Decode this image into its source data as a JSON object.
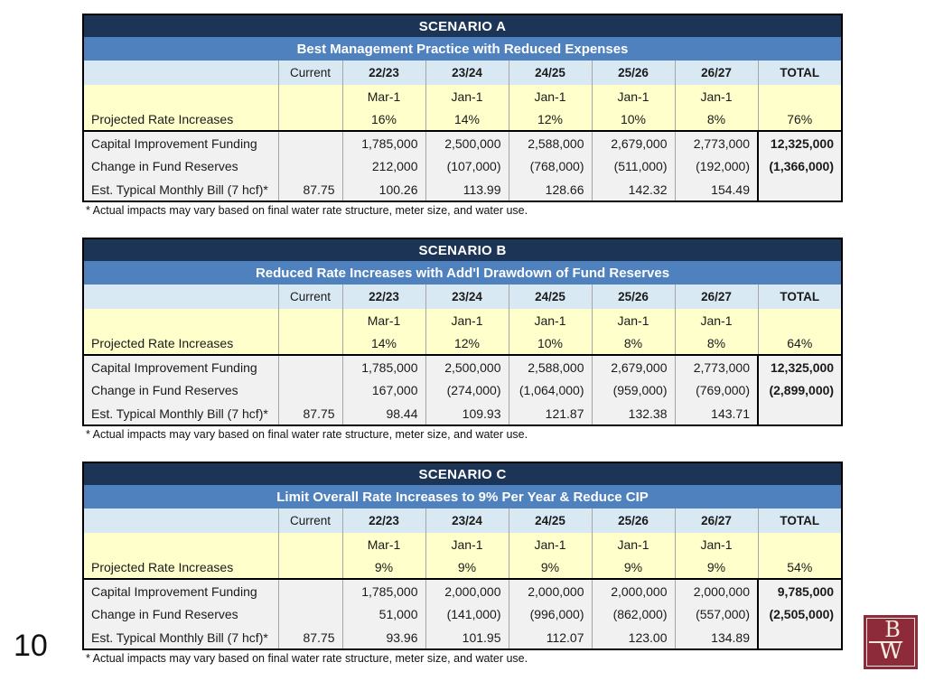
{
  "page": {
    "number": "10"
  },
  "colors": {
    "title_bar": "#1C3557",
    "subtitle_bar": "#4E81BD",
    "column_header_bg": "#D9E9F3",
    "highlight_row_bg": "#FFFFCC",
    "data_row_bg": "#F1F1F1",
    "logo_bg": "#8E2B3B"
  },
  "logo": {
    "letter_top": "B",
    "letter_bottom": "W"
  },
  "scenarios": [
    {
      "title": "SCENARIO A",
      "subtitle": "Best Management Practice with Reduced Expenses",
      "columns": [
        "",
        "Current",
        "22/23",
        "23/24",
        "24/25",
        "25/26",
        "26/27",
        "TOTAL"
      ],
      "effective_dates": [
        "",
        "Mar-1",
        "Jan-1",
        "Jan-1",
        "Jan-1",
        "Jan-1",
        ""
      ],
      "rate_row": {
        "label": "Projected Rate Increases",
        "values": [
          "",
          "16%",
          "14%",
          "12%",
          "10%",
          "8%",
          "76%"
        ]
      },
      "rows": [
        {
          "label": "Capital Improvement Funding",
          "values": [
            "",
            "1,785,000",
            "2,500,000",
            "2,588,000",
            "2,679,000",
            "2,773,000",
            "12,325,000"
          ]
        },
        {
          "label": "Change in Fund Reserves",
          "values": [
            "",
            "212,000",
            "(107,000)",
            "(768,000)",
            "(511,000)",
            "(192,000)",
            "(1,366,000)"
          ]
        },
        {
          "label": "Est. Typical Monthly Bill (7 hcf)*",
          "values": [
            "87.75",
            "100.26",
            "113.99",
            "128.66",
            "142.32",
            "154.49",
            ""
          ]
        }
      ],
      "footnote": "* Actual impacts may vary based on final water rate structure, meter size, and water use."
    },
    {
      "title": "SCENARIO B",
      "subtitle": "Reduced Rate Increases with Add'l Drawdown of Fund Reserves",
      "columns": [
        "",
        "Current",
        "22/23",
        "23/24",
        "24/25",
        "25/26",
        "26/27",
        "TOTAL"
      ],
      "effective_dates": [
        "",
        "Mar-1",
        "Jan-1",
        "Jan-1",
        "Jan-1",
        "Jan-1",
        ""
      ],
      "rate_row": {
        "label": "Projected Rate Increases",
        "values": [
          "",
          "14%",
          "12%",
          "10%",
          "8%",
          "8%",
          "64%"
        ]
      },
      "rows": [
        {
          "label": "Capital Improvement Funding",
          "values": [
            "",
            "1,785,000",
            "2,500,000",
            "2,588,000",
            "2,679,000",
            "2,773,000",
            "12,325,000"
          ]
        },
        {
          "label": "Change in Fund Reserves",
          "values": [
            "",
            "167,000",
            "(274,000)",
            "(1,064,000)",
            "(959,000)",
            "(769,000)",
            "(2,899,000)"
          ]
        },
        {
          "label": "Est. Typical Monthly Bill (7 hcf)*",
          "values": [
            "87.75",
            "98.44",
            "109.93",
            "121.87",
            "132.38",
            "143.71",
            ""
          ]
        }
      ],
      "footnote": "* Actual impacts may vary based on final water rate structure, meter size, and water use."
    },
    {
      "title": "SCENARIO C",
      "subtitle": "Limit Overall Rate Increases to 9% Per Year & Reduce CIP",
      "columns": [
        "",
        "Current",
        "22/23",
        "23/24",
        "24/25",
        "25/26",
        "26/27",
        "TOTAL"
      ],
      "effective_dates": [
        "",
        "Mar-1",
        "Jan-1",
        "Jan-1",
        "Jan-1",
        "Jan-1",
        ""
      ],
      "rate_row": {
        "label": "Projected Rate Increases",
        "values": [
          "",
          "9%",
          "9%",
          "9%",
          "9%",
          "9%",
          "54%"
        ]
      },
      "rows": [
        {
          "label": "Capital Improvement Funding",
          "values": [
            "",
            "1,785,000",
            "2,000,000",
            "2,000,000",
            "2,000,000",
            "2,000,000",
            "9,785,000"
          ]
        },
        {
          "label": "Change in Fund Reserves",
          "values": [
            "",
            "51,000",
            "(141,000)",
            "(996,000)",
            "(862,000)",
            "(557,000)",
            "(2,505,000)"
          ]
        },
        {
          "label": "Est. Typical Monthly Bill (7 hcf)*",
          "values": [
            "87.75",
            "93.96",
            "101.95",
            "112.07",
            "123.00",
            "134.89",
            ""
          ]
        }
      ],
      "footnote": "* Actual impacts may vary based on final water rate structure, meter size, and water use."
    }
  ]
}
